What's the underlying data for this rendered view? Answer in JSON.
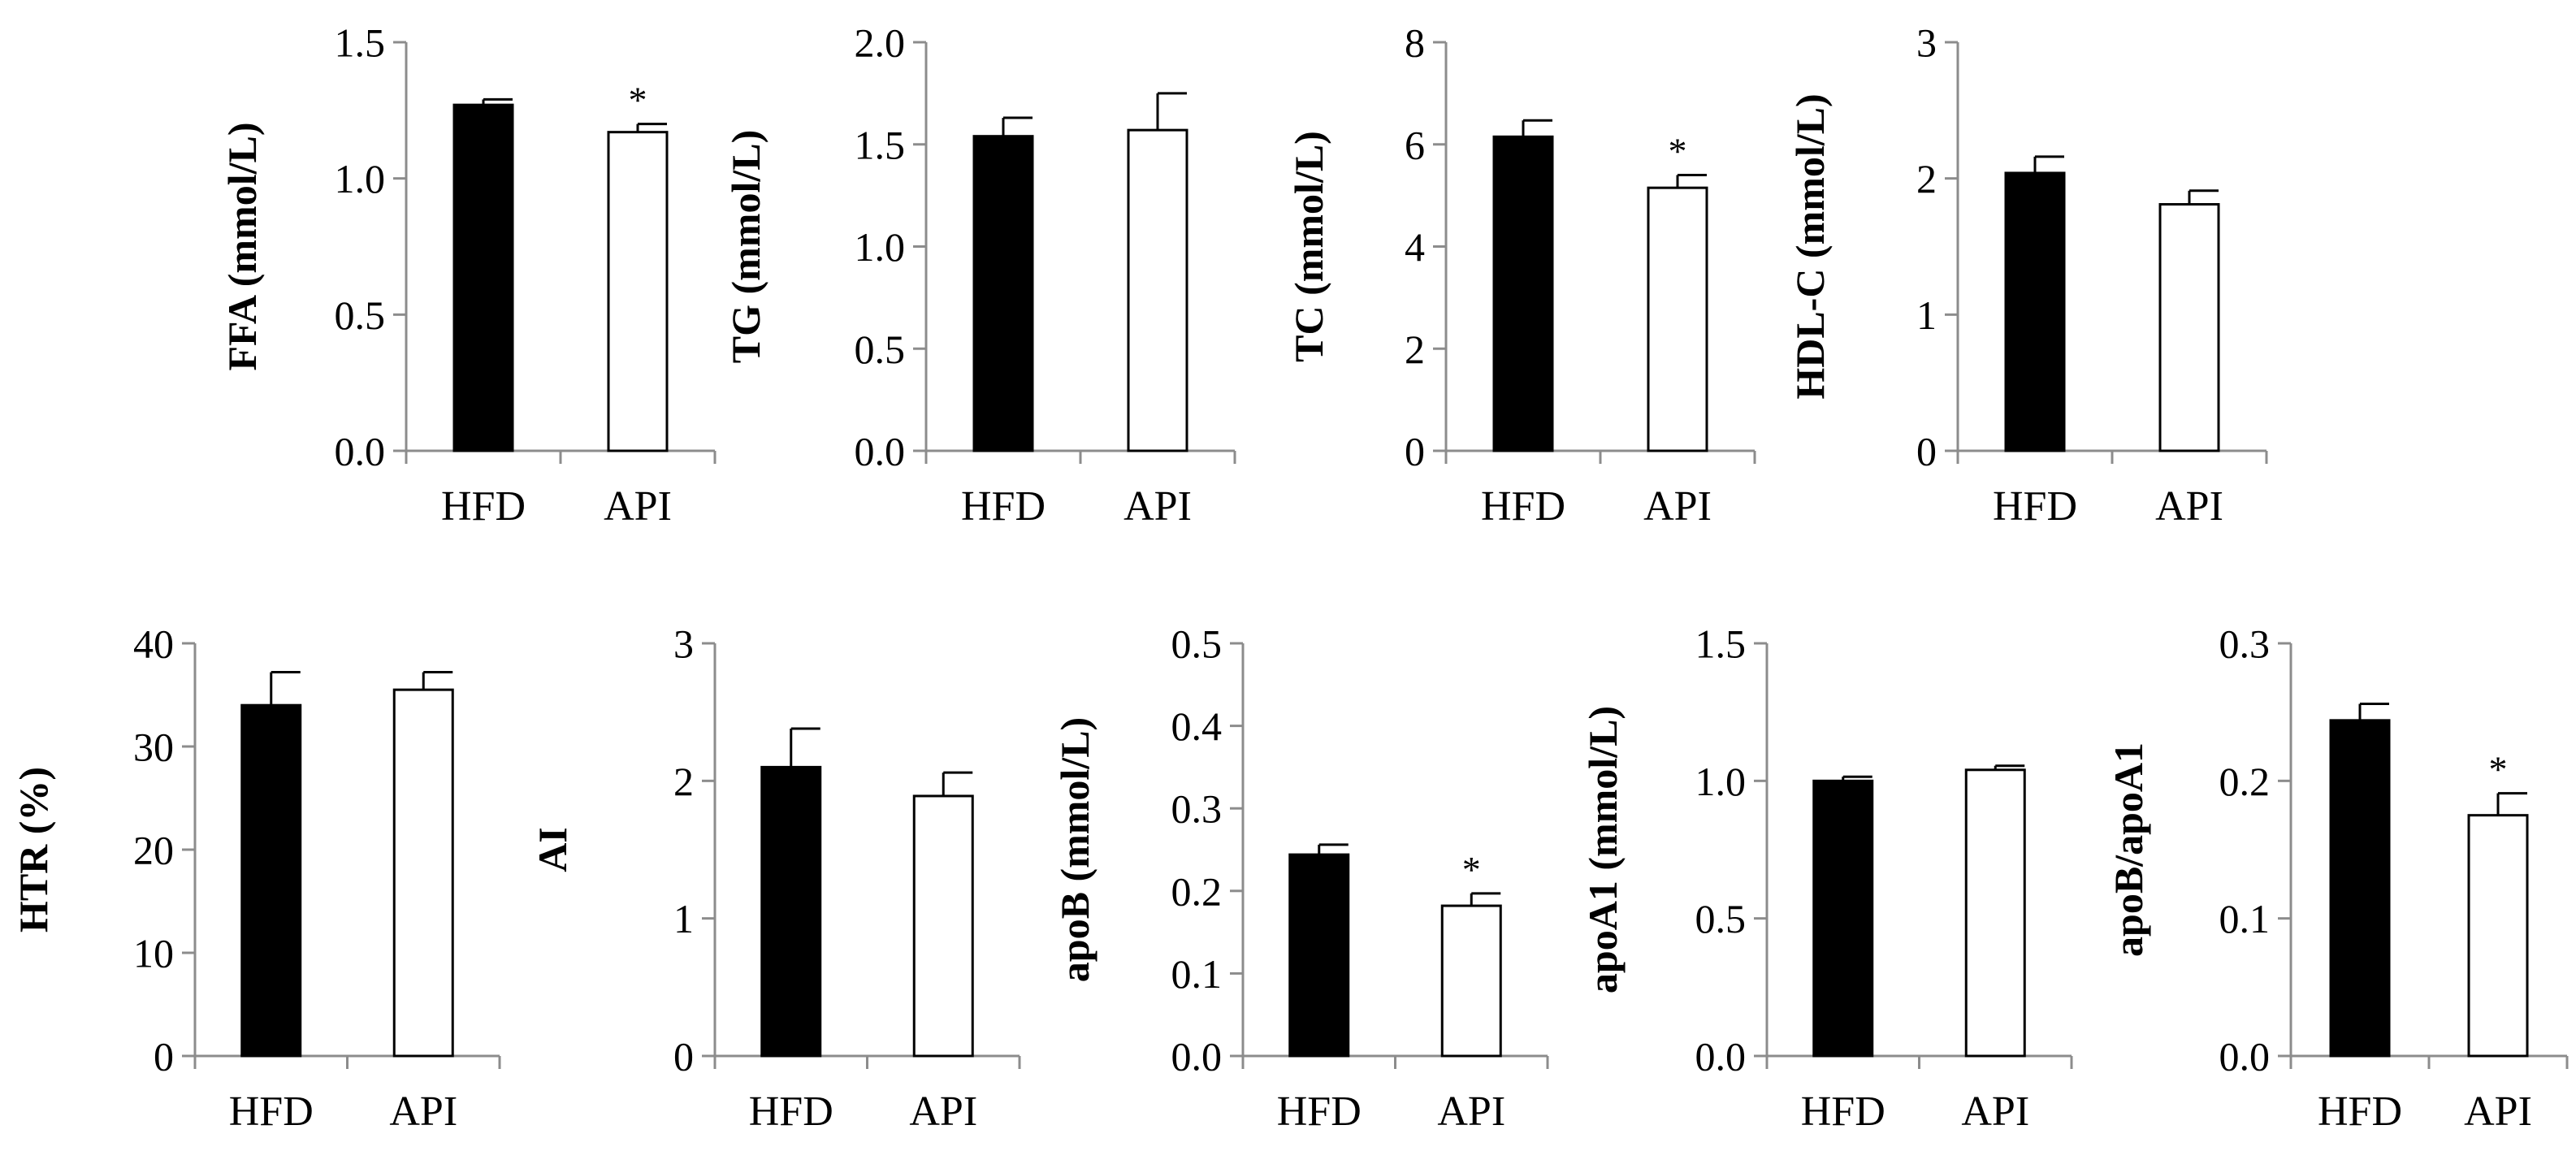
{
  "figure": {
    "categories": [
      "HFD",
      "API"
    ],
    "colors": {
      "HFD": "#000000",
      "API": "#ffffff",
      "axis": "#8c8c8c",
      "outline": "#000000"
    }
  },
  "chart_data": [
    {
      "id": "ffa",
      "type": "bar",
      "ylabel": "FFA (mmol/L)",
      "categories": [
        "HFD",
        "API"
      ],
      "values": [
        1.27,
        1.17
      ],
      "errors": [
        0.02,
        0.03
      ],
      "ylim": [
        0,
        1.5
      ],
      "yticks": [
        "0.0",
        "0.5",
        "1.0",
        "1.5"
      ],
      "significance": [
        "",
        "*"
      ]
    },
    {
      "id": "tg",
      "type": "bar",
      "ylabel": "TG (mmol/L)",
      "categories": [
        "HFD",
        "API"
      ],
      "values": [
        1.54,
        1.57
      ],
      "errors": [
        0.09,
        0.18
      ],
      "ylim": [
        0,
        2.0
      ],
      "yticks": [
        "0.0",
        "0.5",
        "1.0",
        "1.5",
        "2.0"
      ],
      "significance": [
        "",
        ""
      ]
    },
    {
      "id": "tc",
      "type": "bar",
      "ylabel": "TC (mmol/L)",
      "categories": [
        "HFD",
        "API"
      ],
      "values": [
        6.15,
        5.15
      ],
      "errors": [
        0.32,
        0.25
      ],
      "ylim": [
        0,
        8
      ],
      "yticks": [
        "0",
        "2",
        "4",
        "6",
        "8"
      ],
      "significance": [
        "",
        "*"
      ]
    },
    {
      "id": "hdlc",
      "type": "bar",
      "ylabel": "HDL-C (mmol/L)",
      "categories": [
        "HFD",
        "API"
      ],
      "values": [
        2.04,
        1.81
      ],
      "errors": [
        0.12,
        0.1
      ],
      "ylim": [
        0,
        3
      ],
      "yticks": [
        "0",
        "1",
        "2",
        "3"
      ],
      "significance": [
        "",
        ""
      ]
    },
    {
      "id": "htr",
      "type": "bar",
      "ylabel": "HTR (%)",
      "categories": [
        "HFD",
        "API"
      ],
      "values": [
        34.0,
        35.5
      ],
      "errors": [
        3.2,
        1.7
      ],
      "ylim": [
        0,
        40
      ],
      "yticks": [
        "0",
        "10",
        "20",
        "30",
        "40"
      ],
      "significance": [
        "",
        ""
      ]
    },
    {
      "id": "ai",
      "type": "bar",
      "ylabel": "AI",
      "categories": [
        "HFD",
        "API"
      ],
      "values": [
        2.1,
        1.89
      ],
      "errors": [
        0.28,
        0.17
      ],
      "ylim": [
        0,
        3
      ],
      "yticks": [
        "0",
        "1",
        "2",
        "3"
      ],
      "significance": [
        "",
        ""
      ]
    },
    {
      "id": "apob",
      "type": "bar",
      "ylabel": "apoB (mmol/L)",
      "categories": [
        "HFD",
        "API"
      ],
      "values": [
        0.244,
        0.182
      ],
      "errors": [
        0.012,
        0.015
      ],
      "ylim": [
        0,
        0.5
      ],
      "yticks": [
        "0.0",
        "0.1",
        "0.2",
        "0.3",
        "0.4",
        "0.5"
      ],
      "significance": [
        "",
        "*"
      ]
    },
    {
      "id": "apoa1",
      "type": "bar",
      "ylabel": "apoA1 (mmol/L)",
      "categories": [
        "HFD",
        "API"
      ],
      "values": [
        1.0,
        1.04
      ],
      "errors": [
        0.015,
        0.015
      ],
      "ylim": [
        0,
        1.5
      ],
      "yticks": [
        "0.0",
        "0.5",
        "1.0",
        "1.5"
      ],
      "significance": [
        "",
        ""
      ]
    },
    {
      "id": "apob-apoa1",
      "type": "bar",
      "ylabel": "apoB/apoA1",
      "categories": [
        "HFD",
        "API"
      ],
      "values": [
        0.244,
        0.175
      ],
      "errors": [
        0.012,
        0.016
      ],
      "ylim": [
        0,
        0.3
      ],
      "yticks": [
        "0.0",
        "0.1",
        "0.2",
        "0.3"
      ],
      "significance": [
        "",
        "*"
      ]
    }
  ]
}
